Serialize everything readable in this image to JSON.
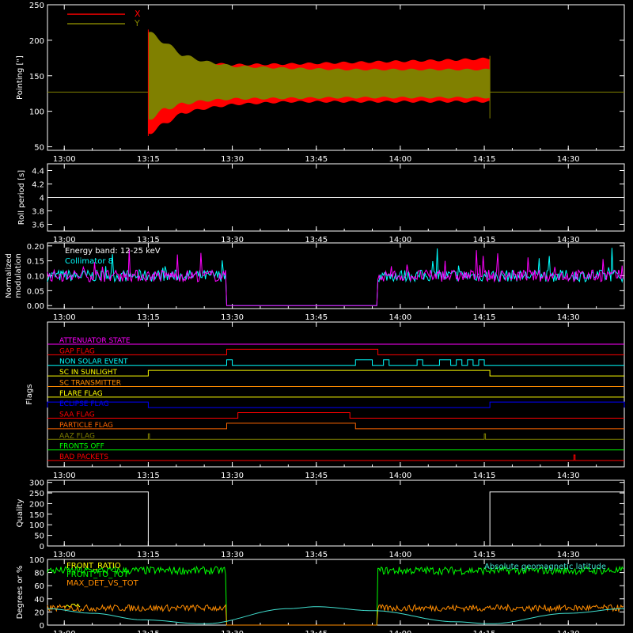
{
  "figure": {
    "background": "#000000",
    "axis_color": "#ffffff"
  },
  "chart_data": [
    {
      "id": "pointing",
      "type": "line",
      "ylabel": "Pointing [\"]",
      "ylim": [
        45,
        250
      ],
      "yticks": [
        50,
        100,
        150,
        200,
        250
      ],
      "xlim": [
        "12:57",
        "14:40"
      ],
      "xticks": [
        "13:00",
        "13:15",
        "13:30",
        "13:45",
        "14:00",
        "14:15",
        "14:30"
      ],
      "legend": {
        "placement": "top-left"
      },
      "series": [
        {
          "name": "X",
          "color": "#ff0000",
          "kind": "band",
          "x": [
            "13:15",
            "13:18",
            "13:21",
            "13:25",
            "13:30",
            "13:40",
            "13:50",
            "14:00",
            "14:10",
            "14:16"
          ],
          "upper": [
            215,
            190,
            175,
            170,
            167,
            168,
            170,
            172,
            174,
            176
          ],
          "lower": [
            65,
            80,
            95,
            102,
            108,
            112,
            112,
            112,
            112,
            112
          ]
        },
        {
          "name": "Y",
          "color": "#808000",
          "kind": "band",
          "x": [
            "13:15",
            "13:18",
            "13:21",
            "13:25",
            "13:30",
            "13:40",
            "13:50",
            "14:00",
            "14:10",
            "14:16"
          ],
          "upper": [
            215,
            200,
            182,
            172,
            165,
            162,
            160,
            160,
            160,
            160
          ],
          "lower": [
            85,
            100,
            108,
            113,
            116,
            117,
            118,
            118,
            118,
            118
          ]
        }
      ],
      "baseline": {
        "value": 127,
        "color": "#808000"
      }
    },
    {
      "id": "roll",
      "type": "line",
      "ylabel": "Roll period [s]",
      "ylim": [
        3.5,
        4.5
      ],
      "yticks": [
        3.6,
        3.8,
        4.0,
        4.2,
        4.4
      ],
      "series": [
        {
          "color": "#ffffff",
          "x": [
            "12:57",
            "14:40"
          ],
          "y": [
            4.0,
            4.0
          ]
        }
      ]
    },
    {
      "id": "modulation",
      "type": "line",
      "ylabel": "Normalized modulation",
      "ylim": [
        -0.01,
        0.21
      ],
      "yticks": [
        0.0,
        0.05,
        0.1,
        0.15,
        0.2
      ],
      "yticklabels": [
        "0.00",
        "0.05",
        "0.10",
        "0.15",
        "0.20"
      ],
      "annotations": [
        "Energy band: 12-25 keV"
      ],
      "series": [
        {
          "name": "Collimator 8",
          "color": "#00ffff",
          "mean": 0.1,
          "zero_between": [
            "13:29",
            "13:56"
          ]
        },
        {
          "color": "#ff00ff",
          "mean": 0.1,
          "zero_between": [
            "13:29",
            "13:56"
          ]
        }
      ]
    },
    {
      "id": "flags",
      "type": "line",
      "ylabel": "Flags",
      "flags": [
        {
          "name": "ATTENUATOR STATE",
          "color": "#ff00ff",
          "steps": []
        },
        {
          "name": "GAP FLAG",
          "color": "#ff0000",
          "steps": [
            [
              "13:29",
              "13:56"
            ]
          ]
        },
        {
          "name": "NON SOLAR EVENT",
          "color": "#00ffff",
          "steps": [
            [
              "13:29",
              "13:30"
            ],
            [
              "13:52",
              "13:55"
            ],
            [
              "13:57",
              "13:58"
            ],
            [
              "14:03",
              "14:04"
            ],
            [
              "14:07",
              "14:09"
            ],
            [
              "14:10",
              "14:11"
            ],
            [
              "14:12",
              "14:13"
            ],
            [
              "14:14",
              "14:15"
            ]
          ]
        },
        {
          "name": "SC IN SUNLIGHT",
          "color": "#ffff00",
          "steps": [
            [
              "13:15",
              "14:16"
            ]
          ]
        },
        {
          "name": "SC TRANSMITTER",
          "color": "#ff8c00",
          "steps": []
        },
        {
          "name": "FLARE FLAG",
          "color": "#ffff00",
          "steps": []
        },
        {
          "name": "ECLIPSE FLAG",
          "color": "#0000ff",
          "steps": [
            [
              "12:57",
              "13:15"
            ],
            [
              "14:16",
              "14:40"
            ]
          ]
        },
        {
          "name": "SAA FLAG",
          "color": "#ff0000",
          "steps": [
            [
              "13:31",
              "13:51"
            ]
          ]
        },
        {
          "name": "PARTICLE FLAG",
          "color": "#ff6600",
          "steps": [
            [
              "13:29",
              "13:52"
            ]
          ]
        },
        {
          "name": "AAZ FLAG",
          "color": "#808000",
          "steps": [
            [
              "13:15",
              "13:15"
            ],
            [
              "14:15",
              "14:15"
            ]
          ]
        },
        {
          "name": "FRONTS OFF",
          "color": "#00ff00",
          "steps": []
        },
        {
          "name": "BAD PACKETS",
          "color": "#ff0000",
          "steps": [
            [
              "14:31",
              "14:31"
            ]
          ]
        }
      ]
    },
    {
      "id": "quality",
      "type": "line",
      "ylabel": "Quality",
      "ylim": [
        0,
        310
      ],
      "yticks": [
        0,
        50,
        100,
        150,
        200,
        250,
        300
      ],
      "series": [
        {
          "color": "#ffffff",
          "x": [
            "12:57",
            "13:15",
            "13:15",
            "14:16",
            "14:16",
            "14:40"
          ],
          "y": [
            255,
            255,
            0,
            0,
            255,
            255
          ]
        }
      ]
    },
    {
      "id": "ratios",
      "type": "line",
      "ylabel": "Degrees or %",
      "ylim": [
        0,
        100
      ],
      "yticks": [
        0,
        20,
        40,
        60,
        80,
        100
      ],
      "legend": {
        "placement": "top-left"
      },
      "series": [
        {
          "name": "FRONT_RATIO",
          "color": "#ffff00",
          "mean": 30,
          "only_between": [
            "13:00",
            "13:03"
          ]
        },
        {
          "name": "FRONT_TO_TOT",
          "color": "#00ff00",
          "mean": 83,
          "zero_between": [
            "13:29",
            "13:56"
          ]
        },
        {
          "name": "MAX_DET_VS_TOT",
          "color": "#ff8c00",
          "mean": 26,
          "zero_between": [
            "13:29",
            "13:56"
          ]
        },
        {
          "name": "Absolute geomagnetic latitude",
          "color": "#40e0d0",
          "x": [
            "12:57",
            "13:05",
            "13:14",
            "13:25",
            "13:40",
            "13:45",
            "13:55",
            "14:10",
            "14:16",
            "14:30",
            "14:40"
          ],
          "y": [
            25,
            18,
            8,
            2,
            25,
            28,
            22,
            5,
            2,
            18,
            25
          ]
        }
      ]
    }
  ]
}
